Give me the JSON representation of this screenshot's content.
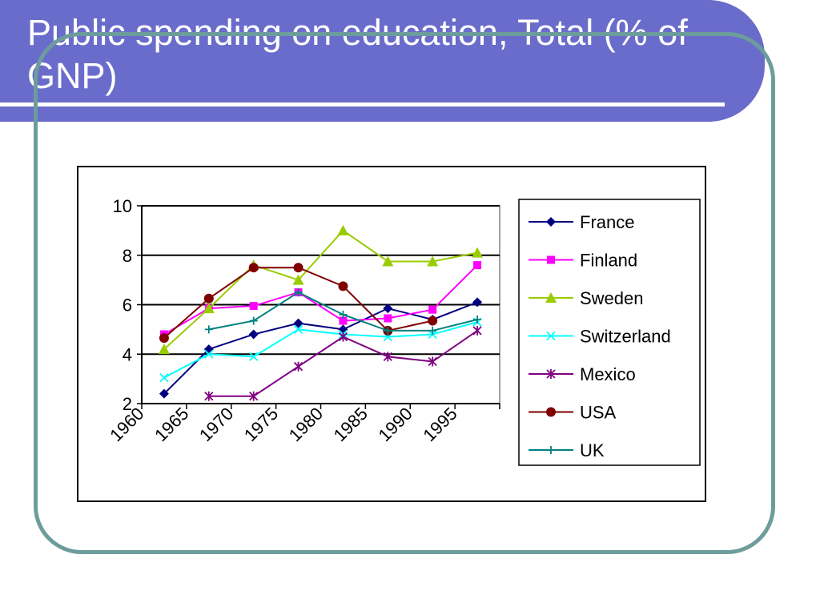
{
  "slide": {
    "title": "Public spending on education, Total (% of GNP)"
  },
  "chart_data": {
    "type": "line",
    "title": "",
    "xlabel": "",
    "ylabel": "",
    "categories": [
      "1960",
      "1965",
      "1970",
      "1975",
      "1980",
      "1985",
      "1990",
      "1995"
    ],
    "x_axis_range": [
      1960,
      2000
    ],
    "ylim": [
      2,
      10
    ],
    "yticks": [
      2,
      4,
      6,
      8,
      10
    ],
    "grid": "horizontal",
    "legend_position": "right",
    "series": [
      {
        "name": "France",
        "color": "#000080",
        "marker": "diamond",
        "x": [
          1962.5,
          1967.5,
          1972.5,
          1977.5,
          1982.5,
          1987.5,
          1992.5,
          1997.5
        ],
        "values": [
          2.4,
          4.2,
          4.8,
          5.25,
          5.0,
          5.85,
          5.4,
          6.1
        ]
      },
      {
        "name": "Finland",
        "color": "#ff00ff",
        "marker": "square",
        "x": [
          1962.5,
          1967.5,
          1972.5,
          1977.5,
          1982.5,
          1987.5,
          1992.5,
          1997.5
        ],
        "values": [
          4.8,
          5.85,
          5.95,
          6.5,
          5.35,
          5.45,
          5.8,
          7.6
        ]
      },
      {
        "name": "Sweden",
        "color": "#99cc00",
        "marker": "triangle",
        "x": [
          1962.5,
          1967.5,
          1972.5,
          1977.5,
          1982.5,
          1987.5,
          1992.5,
          1997.5
        ],
        "values": [
          4.2,
          5.85,
          7.6,
          7.0,
          9.0,
          7.75,
          7.75,
          8.1
        ]
      },
      {
        "name": "Switzerland",
        "color": "#00ffff",
        "marker": "x",
        "x": [
          1962.5,
          1967.5,
          1972.5,
          1977.5,
          1982.5,
          1987.5,
          1992.5,
          1997.5
        ],
        "values": [
          3.05,
          4.0,
          3.9,
          5.0,
          4.8,
          4.7,
          4.8,
          5.3
        ]
      },
      {
        "name": "Mexico",
        "color": "#800080",
        "marker": "star",
        "x": [
          1967.5,
          1972.5,
          1977.5,
          1982.5,
          1987.5,
          1992.5,
          1997.5
        ],
        "values": [
          2.3,
          2.3,
          3.5,
          4.7,
          3.9,
          3.7,
          4.95
        ]
      },
      {
        "name": "USA",
        "color": "#800000",
        "marker": "circle",
        "x": [
          1962.5,
          1967.5,
          1972.5,
          1977.5,
          1982.5,
          1987.5,
          1992.5
        ],
        "values": [
          4.65,
          6.25,
          7.5,
          7.5,
          6.75,
          4.95,
          5.35
        ]
      },
      {
        "name": "UK",
        "color": "#008080",
        "marker": "plus",
        "x": [
          1967.5,
          1972.5,
          1977.5,
          1982.5,
          1987.5,
          1992.5,
          1997.5
        ],
        "values": [
          5.0,
          5.35,
          6.5,
          5.6,
          4.95,
          4.95,
          5.4
        ]
      }
    ]
  }
}
